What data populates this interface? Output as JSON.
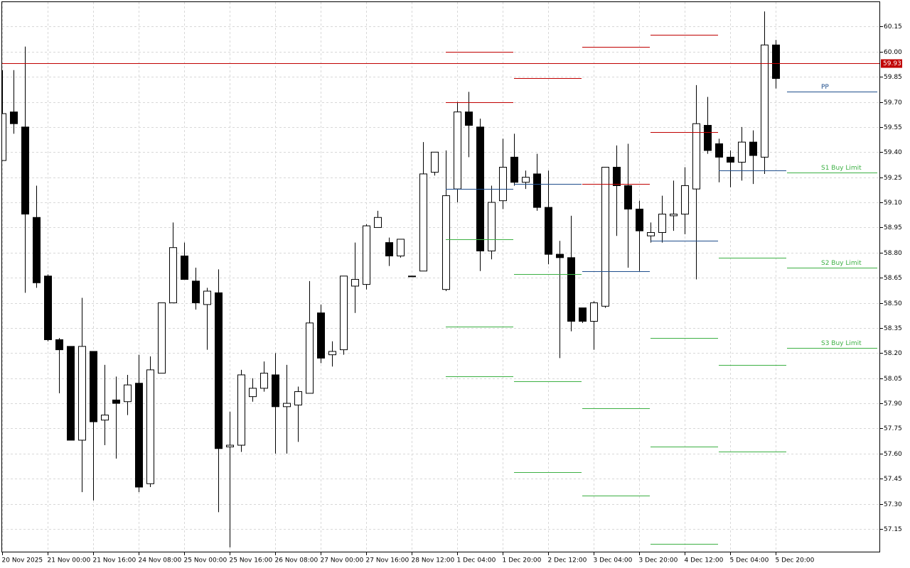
{
  "chart_data": {
    "type": "candlestick",
    "categories": [
      "20 Nov 2025",
      null,
      null,
      null,
      "21 Nov 00:00",
      null,
      null,
      null,
      "21 Nov 16:00",
      null,
      null,
      null,
      "24 Nov 08:00",
      null,
      null,
      null,
      "25 Nov 00:00",
      null,
      null,
      null,
      "25 Nov 16:00",
      null,
      null,
      null,
      "26 Nov 08:00",
      null,
      null,
      null,
      "27 Nov 00:00",
      null,
      null,
      null,
      "27 Nov 16:00",
      null,
      null,
      null,
      "28 Nov 12:00",
      null,
      null,
      null,
      "1 Dec 04:00",
      null,
      null,
      null,
      "1 Dec 20:00",
      null,
      null,
      null,
      "2 Dec 12:00",
      null,
      null,
      null,
      "3 Dec 04:00",
      null,
      null,
      null,
      "3 Dec 20:00",
      null,
      null,
      null,
      "4 Dec 12:00",
      null,
      null,
      null,
      "5 Dec 04:00",
      null,
      null,
      null,
      "5 Dec 20:00"
    ],
    "open": [
      59.35,
      59.64,
      59.55,
      59.01,
      58.66,
      58.28,
      58.24,
      57.68,
      58.21,
      57.8,
      57.92,
      57.91,
      58.02,
      57.42,
      58.08,
      58.5,
      58.78,
      58.63,
      58.49,
      58.56,
      57.64,
      57.65,
      57.94,
      57.99,
      58.07,
      57.88,
      57.89,
      57.96,
      58.44,
      58.19,
      58.22,
      58.6,
      58.61,
      58.95,
      58.86,
      58.78,
      58.66,
      58.69,
      59.28,
      58.58,
      59.18,
      59.64,
      59.55,
      58.81,
      59.11,
      59.37,
      59.22,
      59.27,
      59.07,
      58.79,
      58.77,
      58.47,
      58.39,
      58.48,
      59.31,
      59.2,
      59.06,
      58.9,
      58.92,
      59.02,
      59.03,
      59.18,
      59.56,
      59.45,
      59.37,
      59.34,
      59.46,
      59.37,
      60.04
    ],
    "high": [
      59.89,
      59.89,
      60.03,
      59.2,
      58.67,
      58.29,
      58.24,
      58.53,
      58.21,
      58.13,
      58.06,
      58.07,
      58.19,
      58.18,
      58.5,
      58.98,
      58.86,
      58.71,
      58.59,
      58.7,
      57.85,
      58.1,
      58.05,
      58.15,
      58.2,
      58.13,
      58.0,
      58.63,
      58.49,
      58.27,
      58.66,
      58.86,
      58.97,
      59.05,
      58.89,
      58.88,
      58.66,
      59.46,
      59.4,
      59.41,
      59.7,
      59.76,
      59.6,
      59.2,
      59.48,
      59.51,
      59.29,
      59.39,
      59.29,
      58.87,
      59.02,
      58.47,
      58.51,
      59.31,
      59.44,
      59.45,
      59.11,
      58.98,
      59.14,
      59.23,
      59.31,
      59.8,
      59.73,
      59.48,
      59.41,
      59.55,
      59.53,
      60.24,
      60.07
    ],
    "low": [
      59.35,
      59.51,
      58.56,
      58.59,
      58.27,
      57.96,
      57.68,
      57.37,
      57.32,
      57.65,
      57.57,
      57.83,
      57.37,
      57.4,
      58.08,
      58.5,
      58.64,
      58.46,
      58.22,
      57.25,
      57.04,
      57.61,
      57.91,
      57.97,
      57.6,
      57.6,
      57.67,
      57.96,
      58.14,
      58.12,
      58.19,
      58.44,
      58.58,
      58.95,
      58.72,
      58.77,
      58.66,
      58.69,
      59.26,
      58.57,
      59.1,
      59.37,
      58.69,
      58.76,
      59.06,
      59.2,
      59.18,
      59.05,
      58.73,
      58.17,
      58.33,
      58.38,
      58.22,
      58.47,
      58.9,
      58.71,
      58.69,
      58.86,
      58.86,
      58.93,
      58.91,
      58.64,
      59.39,
      59.22,
      59.19,
      59.23,
      59.21,
      59.27,
      59.78
    ],
    "close": [
      59.63,
      59.57,
      59.03,
      58.62,
      58.28,
      58.22,
      57.68,
      58.24,
      57.79,
      57.83,
      57.9,
      58.01,
      57.4,
      58.1,
      58.5,
      58.83,
      58.64,
      58.5,
      58.57,
      57.63,
      57.65,
      58.07,
      57.99,
      58.08,
      57.88,
      57.9,
      57.97,
      58.38,
      58.17,
      58.21,
      58.66,
      58.64,
      58.96,
      59.01,
      58.78,
      58.88,
      58.66,
      59.27,
      59.4,
      59.14,
      59.64,
      59.56,
      58.81,
      59.1,
      59.31,
      59.22,
      59.25,
      59.07,
      58.79,
      58.77,
      58.39,
      58.39,
      58.5,
      59.31,
      59.2,
      59.06,
      58.93,
      58.92,
      59.03,
      59.03,
      59.2,
      59.57,
      59.41,
      59.37,
      59.34,
      59.46,
      59.38,
      60.04,
      59.84
    ],
    "ylim": [
      57.01,
      60.3
    ],
    "yticks": [
      57.15,
      {
        "value": 57.3,
        "label": "57.30"
      },
      57.45,
      {
        "value": 57.6,
        "label": "57.60"
      },
      57.75,
      {
        "value": 57.9,
        "label": "57.90"
      },
      58.05,
      {
        "value": 58.2,
        "label": "58.20"
      },
      58.35,
      {
        "value": 58.5,
        "label": "58.50"
      },
      58.65,
      {
        "value": 58.8,
        "label": "58.80"
      },
      58.95,
      {
        "value": 59.1,
        "label": "59.10"
      },
      59.25,
      {
        "value": 59.4,
        "label": "59.40"
      },
      59.55,
      {
        "value": 59.7,
        "label": "59.70"
      },
      59.85,
      {
        "value": 60.0,
        "label": "60.00"
      },
      60.15
    ],
    "grid": true,
    "last_price": 59.93,
    "colors": {
      "bull": "#ffffff",
      "bear": "#000000",
      "resistance": "#c00000",
      "pivot": "#1f4e8c",
      "support": "#3cb043",
      "price": "#c00000"
    },
    "levels": [
      {
        "start": 39,
        "end": 45,
        "resistance": [
          60.0,
          59.7
        ],
        "pivot": 59.18,
        "support": [
          58.88,
          58.36,
          58.06
        ]
      },
      {
        "start": 45,
        "end": 51,
        "resistance": [
          59.84
        ],
        "pivot": 59.21,
        "support": [
          58.67,
          58.03,
          57.49
        ]
      },
      {
        "start": 51,
        "end": 57,
        "resistance": [
          60.03,
          59.21
        ],
        "pivot": 58.69,
        "support": [
          57.87,
          57.35
        ]
      },
      {
        "start": 57,
        "end": 63,
        "resistance": [
          60.1,
          59.52
        ],
        "pivot": 58.87,
        "support": [
          58.29,
          57.64,
          57.06
        ]
      },
      {
        "start": 63,
        "end": 69,
        "resistance": [
          59.93
        ],
        "pivot": 59.29,
        "support": [
          58.77,
          58.13,
          57.61
        ]
      },
      {
        "start": 69,
        "end": 77,
        "resistance": [],
        "pivot": 59.76,
        "pivot_label": "PP",
        "support": [
          59.28,
          58.71,
          58.23
        ],
        "support_labels": [
          "S1 Buy Limit",
          "S2 Buy Limit",
          "S3 Buy Limit"
        ]
      }
    ]
  }
}
